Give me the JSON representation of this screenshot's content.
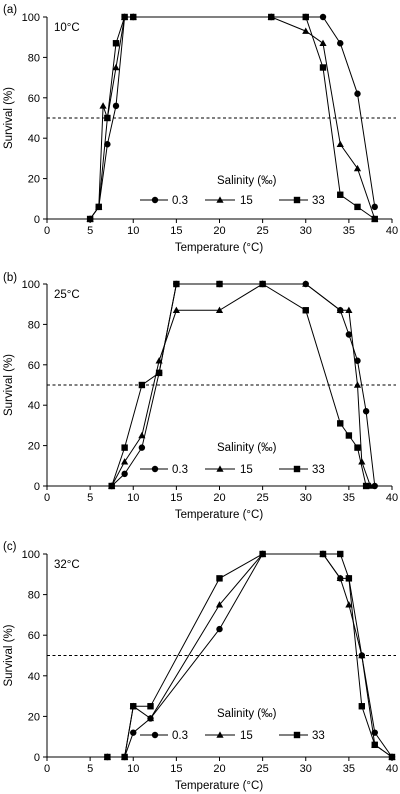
{
  "chart_data": [
    {
      "type": "line",
      "panel_label": "(a)",
      "condition": "10°C",
      "xlabel": "Temperature (°C)",
      "ylabel": "Survival (%)",
      "xlim": [
        0,
        40
      ],
      "ylim": [
        0,
        100
      ],
      "xticks": [
        "0",
        "5",
        "10",
        "15",
        "20",
        "25",
        "30",
        "35",
        "40"
      ],
      "yticks": [
        "0",
        "20",
        "40",
        "60",
        "80",
        "100"
      ],
      "reference_line": 50,
      "legend_title": "Salinity (‰)",
      "series": [
        {
          "name": "0.3",
          "marker": "circle",
          "x": [
            5,
            6,
            7,
            8,
            9,
            10,
            26,
            30,
            32,
            34,
            36,
            38
          ],
          "y": [
            0,
            6,
            37,
            56,
            100,
            100,
            100,
            100,
            100,
            87,
            62,
            6
          ]
        },
        {
          "name": "15",
          "marker": "triangle",
          "x": [
            5,
            6,
            6.5,
            7,
            8,
            9,
            10,
            26,
            30,
            32,
            34,
            36,
            38
          ],
          "y": [
            0,
            6,
            56,
            50,
            75,
            100,
            100,
            100,
            93,
            87,
            37,
            25,
            0
          ]
        },
        {
          "name": "33",
          "marker": "square",
          "x": [
            5,
            6,
            7,
            8,
            9,
            10,
            26,
            30,
            32,
            34,
            36,
            38
          ],
          "y": [
            0,
            6,
            50,
            87,
            100,
            100,
            100,
            100,
            75,
            12,
            6,
            0
          ]
        }
      ]
    },
    {
      "type": "line",
      "panel_label": "(b)",
      "condition": "25°C",
      "xlabel": "Temperature (°C)",
      "ylabel": "Survival (%)",
      "xlim": [
        0,
        40
      ],
      "ylim": [
        0,
        100
      ],
      "xticks": [
        "0",
        "5",
        "10",
        "15",
        "20",
        "25",
        "30",
        "35",
        "40"
      ],
      "yticks": [
        "0",
        "20",
        "40",
        "60",
        "80",
        "100"
      ],
      "reference_line": 50,
      "legend_title": "Salinity (‰)",
      "series": [
        {
          "name": "0.3",
          "marker": "circle",
          "x": [
            7.5,
            9,
            11,
            13,
            15,
            20,
            25,
            30,
            34,
            35,
            36,
            37,
            38
          ],
          "y": [
            0,
            6,
            19,
            56,
            100,
            100,
            100,
            100,
            87,
            75,
            62,
            37,
            0
          ]
        },
        {
          "name": "15",
          "marker": "triangle",
          "x": [
            7.5,
            9,
            11,
            13,
            15,
            20,
            25,
            30,
            34,
            35,
            36,
            36.5,
            37.5
          ],
          "y": [
            0,
            12,
            25,
            62,
            87,
            87,
            100,
            100,
            87,
            87,
            50,
            12,
            0
          ]
        },
        {
          "name": "33",
          "marker": "square",
          "x": [
            7.5,
            9,
            11,
            13,
            15,
            20,
            25,
            30,
            34,
            35,
            36,
            37
          ],
          "y": [
            0,
            19,
            50,
            56,
            100,
            100,
            100,
            87,
            31,
            25,
            19,
            0
          ]
        }
      ]
    },
    {
      "type": "line",
      "panel_label": "(c)",
      "condition": "32°C",
      "xlabel": "Temperature (°C)",
      "ylabel": "Survival (%)",
      "xlim": [
        0,
        40
      ],
      "ylim": [
        0,
        100
      ],
      "xticks": [
        "0",
        "5",
        "10",
        "15",
        "20",
        "25",
        "30",
        "35",
        "40"
      ],
      "yticks": [
        "0",
        "20",
        "40",
        "60",
        "80",
        "100"
      ],
      "reference_line": 50,
      "legend_title": "Salinity (‰)",
      "series": [
        {
          "name": "0.3",
          "marker": "circle",
          "x": [
            7,
            9,
            10,
            12,
            20,
            25,
            32,
            34,
            35,
            36.5,
            38,
            40
          ],
          "y": [
            0,
            0,
            12,
            19,
            63,
            100,
            100,
            88,
            88,
            50,
            12,
            0
          ]
        },
        {
          "name": "15",
          "marker": "triangle",
          "x": [
            7,
            9,
            10,
            12,
            20,
            25,
            32,
            34,
            35,
            36.5,
            38,
            40
          ],
          "y": [
            0,
            0,
            25,
            19,
            75,
            100,
            100,
            88,
            75,
            50,
            6,
            0
          ]
        },
        {
          "name": "33",
          "marker": "square",
          "x": [
            7,
            9,
            10,
            12,
            20,
            25,
            32,
            34,
            35,
            36.5,
            38,
            40
          ],
          "y": [
            0,
            0,
            25,
            25,
            88,
            100,
            100,
            100,
            88,
            25,
            6,
            0
          ]
        }
      ]
    }
  ]
}
